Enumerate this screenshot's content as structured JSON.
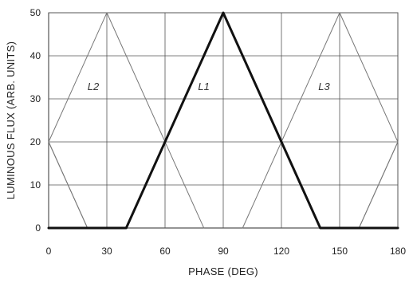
{
  "chart_data": {
    "type": "line",
    "xlabel": "PHASE (DEG)",
    "ylabel": "LUMINOUS FLUX (ARB. UNITS)",
    "xlim": [
      0,
      180
    ],
    "ylim": [
      0,
      50
    ],
    "xticks": [
      "0",
      "30",
      "60",
      "90",
      "120",
      "150",
      "180"
    ],
    "yticks": [
      "0",
      "10",
      "20",
      "30",
      "40",
      "50"
    ],
    "grid": true,
    "series": [
      {
        "name": "L1",
        "emphasis": "bold",
        "color": "#111111",
        "label_at": [
          80,
          32
        ],
        "points": [
          [
            0,
            0
          ],
          [
            40,
            0
          ],
          [
            90,
            50
          ],
          [
            140,
            0
          ],
          [
            180,
            0
          ]
        ]
      },
      {
        "name": "L2",
        "emphasis": "thin",
        "color": "#777777",
        "label_at": [
          23,
          32
        ],
        "points": [
          [
            0,
            20
          ],
          [
            30,
            50
          ],
          [
            80,
            0
          ]
        ],
        "segments": [
          [
            [
              0,
              20
            ],
            [
              30,
              50
            ],
            [
              80,
              0
            ]
          ],
          [
            [
              0,
              20
            ],
            [
              20,
              0
            ]
          ],
          [
            [
              160,
              0
            ],
            [
              180,
              20
            ]
          ]
        ]
      },
      {
        "name": "L3",
        "emphasis": "thin",
        "color": "#777777",
        "label_at": [
          142,
          32
        ],
        "points": [
          [
            100,
            0
          ],
          [
            150,
            50
          ],
          [
            180,
            20
          ]
        ],
        "segments": [
          [
            [
              100,
              0
            ],
            [
              150,
              50
            ],
            [
              180,
              20
            ]
          ],
          [
            [
              0,
              20
            ],
            [
              20,
              0
            ]
          ],
          [
            [
              160,
              0
            ],
            [
              180,
              20
            ]
          ]
        ]
      }
    ]
  }
}
